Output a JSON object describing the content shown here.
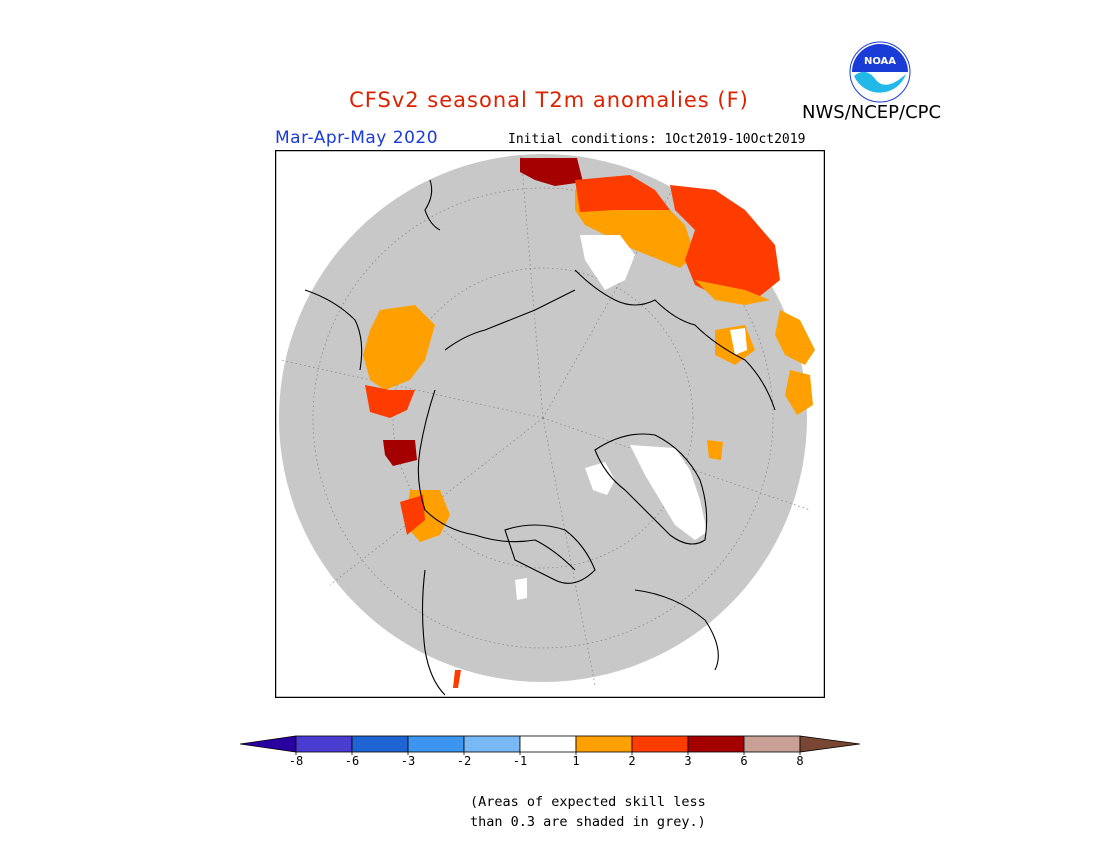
{
  "title": "CFSv2 seasonal T2m anomalies (F)",
  "organization": "NWS/NCEP/CPC",
  "logo_text": "NOAA",
  "season": "Mar-Apr-May 2020",
  "initial_conditions": "Initial conditions: 1Oct2019-10Oct2019",
  "note_line1": "(Areas of expected skill less",
  "note_line2": "than 0.3 are shaded in grey.)",
  "colors": {
    "title": "#dd2200",
    "season": "#1a3cd6",
    "ocean_land_grey": "#c8c8c8",
    "coast": "#000000",
    "white": "#ffffff",
    "orange": "#ffa000",
    "red_orange": "#ff3c00",
    "dark_red": "#a50000",
    "pink_brown": "#c8a096"
  },
  "colorbar": {
    "labels": [
      "-8",
      "-6",
      "-3",
      "-2",
      "-1",
      "1",
      "2",
      "3",
      "6",
      "8"
    ],
    "segments": [
      "#2a00a0",
      "#4a3cd0",
      "#1e64d2",
      "#3c96f0",
      "#78b9f5",
      "#ffffff",
      "#ffa000",
      "#ff3c00",
      "#a50000",
      "#c8a096",
      "#784632"
    ]
  }
}
